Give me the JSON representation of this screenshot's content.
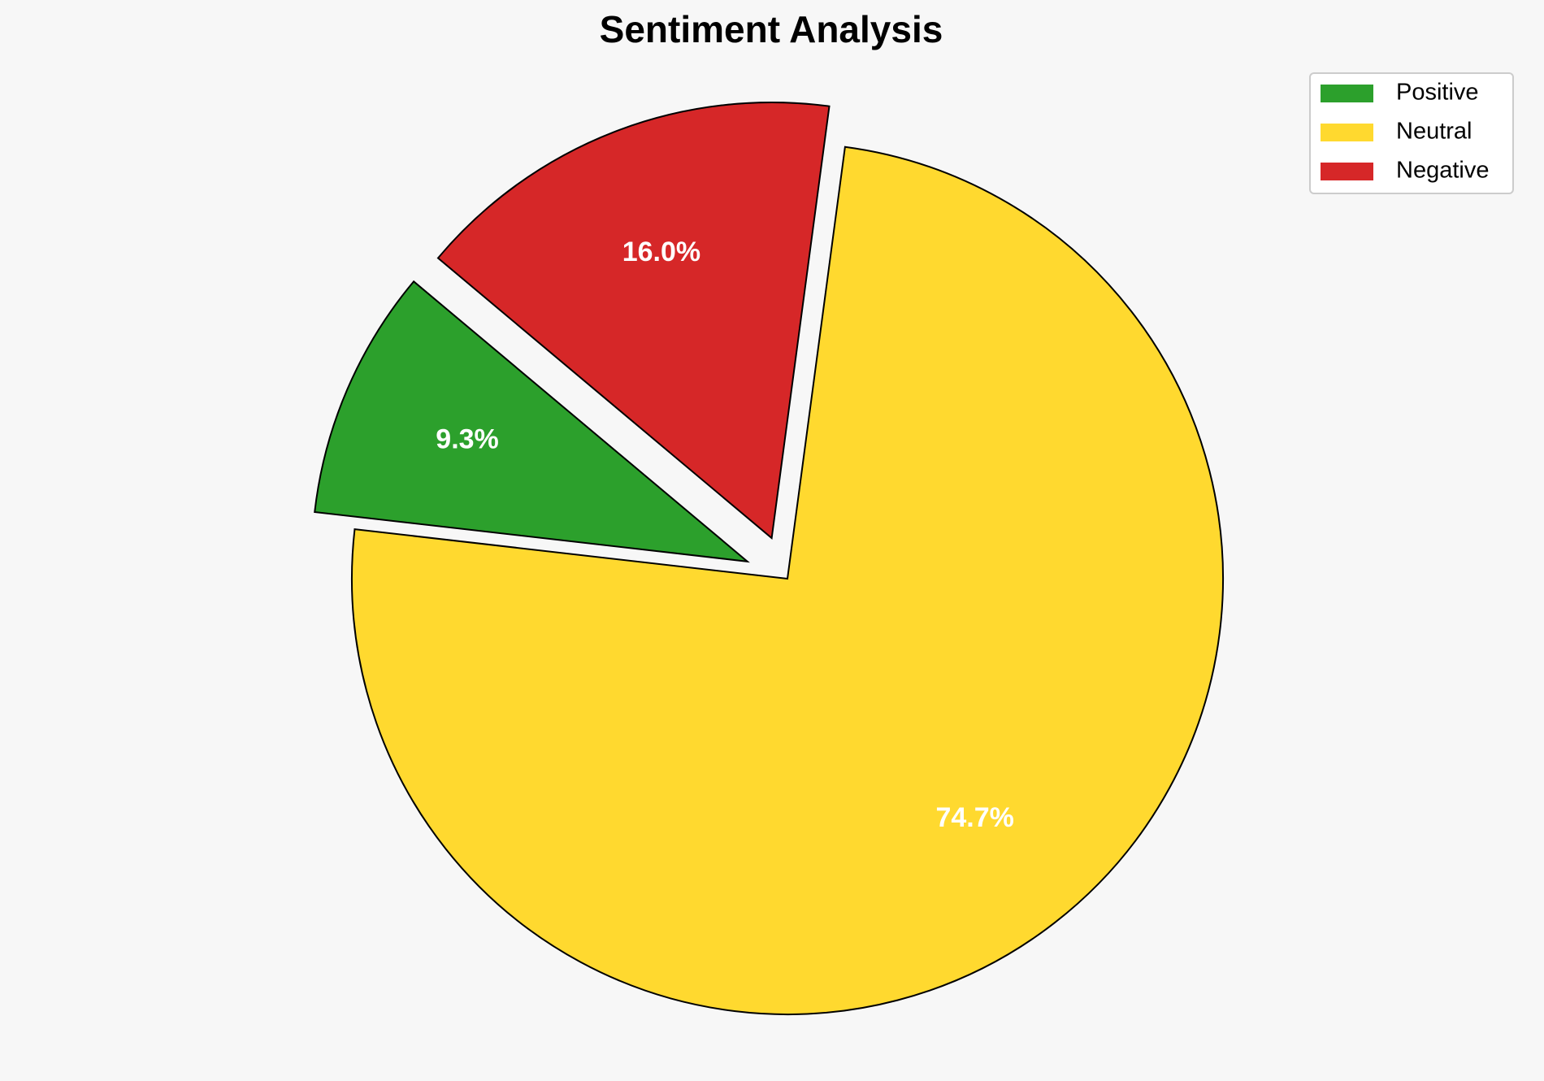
{
  "chart_data": {
    "type": "pie",
    "title": "Sentiment Analysis",
    "categories": [
      "Positive",
      "Neutral",
      "Negative"
    ],
    "values": [
      9.3,
      74.7,
      16.0
    ],
    "value_labels": [
      "9.3%",
      "74.7%",
      "16.0%"
    ],
    "colors": [
      "#2ca02c",
      "#ffd92f",
      "#d62728"
    ],
    "startangle": 140,
    "explode": [
      0.1,
      0,
      0.1
    ],
    "legend": "upper right"
  }
}
